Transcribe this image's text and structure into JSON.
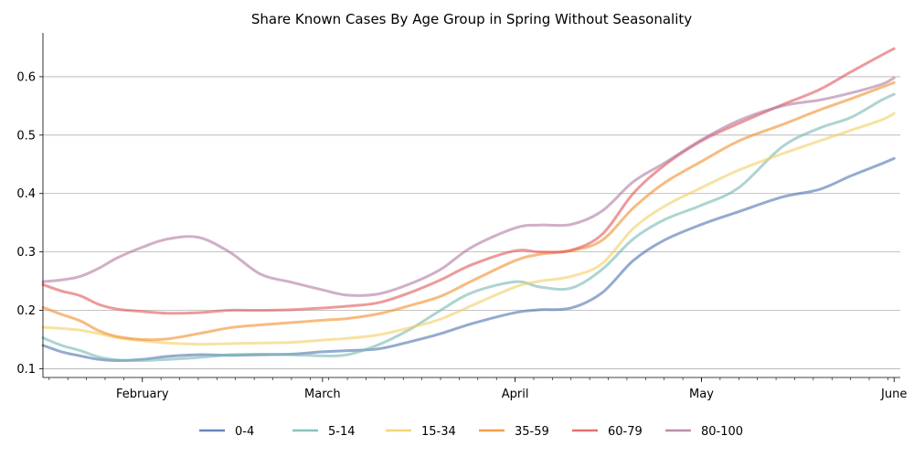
{
  "chart_data": {
    "type": "line",
    "title": "Share Known Cases By Age Group in Spring Without Seasonality",
    "xlabel": "",
    "ylabel": "",
    "x_start": "2020-01-16",
    "x_end": "2020-06-02",
    "x_ticks": [
      {
        "label": "February",
        "date": "2020-02-01"
      },
      {
        "label": "March",
        "date": "2020-03-01"
      },
      {
        "label": "April",
        "date": "2020-04-01"
      },
      {
        "label": "May",
        "date": "2020-05-01"
      },
      {
        "label": "June",
        "date": "2020-06-01"
      }
    ],
    "ylim": [
      0.085,
      0.675
    ],
    "y_ticks": [
      0.1,
      0.2,
      0.3,
      0.4,
      0.5,
      0.6
    ],
    "grid": "horizontal",
    "legend_position": "bottom",
    "series": [
      {
        "name": "0-4",
        "color": "#4c72b0",
        "x": [
          "2020-01-16",
          "2020-01-19",
          "2020-01-22",
          "2020-01-25",
          "2020-01-28",
          "2020-02-01",
          "2020-02-05",
          "2020-02-10",
          "2020-02-15",
          "2020-02-20",
          "2020-02-25",
          "2020-03-01",
          "2020-03-05",
          "2020-03-10",
          "2020-03-15",
          "2020-03-20",
          "2020-03-25",
          "2020-04-01",
          "2020-04-05",
          "2020-04-10",
          "2020-04-15",
          "2020-04-20",
          "2020-04-25",
          "2020-05-01",
          "2020-05-07",
          "2020-05-14",
          "2020-05-20",
          "2020-05-25",
          "2020-05-30",
          "2020-06-01"
        ],
        "values": [
          0.14,
          0.129,
          0.122,
          0.116,
          0.114,
          0.116,
          0.121,
          0.124,
          0.123,
          0.124,
          0.125,
          0.129,
          0.131,
          0.134,
          0.146,
          0.16,
          0.177,
          0.196,
          0.201,
          0.204,
          0.23,
          0.285,
          0.32,
          0.347,
          0.369,
          0.394,
          0.407,
          0.43,
          0.451,
          0.46
        ]
      },
      {
        "name": "5-14",
        "color": "#76b7b2",
        "x": [
          "2020-01-16",
          "2020-01-19",
          "2020-01-22",
          "2020-01-25",
          "2020-01-28",
          "2020-02-01",
          "2020-02-05",
          "2020-02-10",
          "2020-02-15",
          "2020-02-20",
          "2020-02-25",
          "2020-03-01",
          "2020-03-05",
          "2020-03-10",
          "2020-03-15",
          "2020-03-20",
          "2020-03-25",
          "2020-04-01",
          "2020-04-05",
          "2020-04-10",
          "2020-04-15",
          "2020-04-20",
          "2020-04-25",
          "2020-05-01",
          "2020-05-07",
          "2020-05-14",
          "2020-05-20",
          "2020-05-25",
          "2020-05-30",
          "2020-06-01"
        ],
        "values": [
          0.153,
          0.14,
          0.131,
          0.12,
          0.115,
          0.114,
          0.116,
          0.119,
          0.124,
          0.125,
          0.124,
          0.122,
          0.124,
          0.141,
          0.167,
          0.2,
          0.23,
          0.249,
          0.24,
          0.238,
          0.27,
          0.322,
          0.355,
          0.38,
          0.41,
          0.48,
          0.512,
          0.53,
          0.56,
          0.57
        ]
      },
      {
        "name": "15-34",
        "color": "#f1ce63",
        "x": [
          "2020-01-16",
          "2020-01-19",
          "2020-01-22",
          "2020-01-25",
          "2020-01-28",
          "2020-02-01",
          "2020-02-05",
          "2020-02-10",
          "2020-02-15",
          "2020-02-20",
          "2020-02-25",
          "2020-03-01",
          "2020-03-05",
          "2020-03-10",
          "2020-03-15",
          "2020-03-20",
          "2020-03-25",
          "2020-04-01",
          "2020-04-05",
          "2020-04-10",
          "2020-04-15",
          "2020-04-20",
          "2020-04-25",
          "2020-05-01",
          "2020-05-07",
          "2020-05-14",
          "2020-05-20",
          "2020-05-25",
          "2020-05-30",
          "2020-06-01"
        ],
        "values": [
          0.171,
          0.169,
          0.166,
          0.16,
          0.153,
          0.148,
          0.144,
          0.142,
          0.143,
          0.144,
          0.145,
          0.149,
          0.152,
          0.158,
          0.17,
          0.185,
          0.208,
          0.24,
          0.25,
          0.258,
          0.28,
          0.34,
          0.378,
          0.41,
          0.44,
          0.468,
          0.49,
          0.508,
          0.526,
          0.537
        ]
      },
      {
        "name": "35-59",
        "color": "#f28e2b",
        "x": [
          "2020-01-16",
          "2020-01-19",
          "2020-01-22",
          "2020-01-25",
          "2020-01-28",
          "2020-02-01",
          "2020-02-05",
          "2020-02-10",
          "2020-02-15",
          "2020-02-20",
          "2020-02-25",
          "2020-03-01",
          "2020-03-05",
          "2020-03-10",
          "2020-03-15",
          "2020-03-20",
          "2020-03-25",
          "2020-04-01",
          "2020-04-05",
          "2020-04-10",
          "2020-04-15",
          "2020-04-20",
          "2020-04-25",
          "2020-05-01",
          "2020-05-07",
          "2020-05-14",
          "2020-05-20",
          "2020-05-25",
          "2020-05-30",
          "2020-06-01"
        ],
        "values": [
          0.205,
          0.193,
          0.182,
          0.165,
          0.155,
          0.15,
          0.151,
          0.16,
          0.17,
          0.175,
          0.179,
          0.183,
          0.186,
          0.194,
          0.208,
          0.224,
          0.25,
          0.285,
          0.296,
          0.302,
          0.32,
          0.375,
          0.418,
          0.455,
          0.49,
          0.518,
          0.543,
          0.562,
          0.582,
          0.59
        ]
      },
      {
        "name": "60-79",
        "color": "#e15759",
        "x": [
          "2020-01-16",
          "2020-01-19",
          "2020-01-22",
          "2020-01-25",
          "2020-01-28",
          "2020-02-01",
          "2020-02-05",
          "2020-02-10",
          "2020-02-15",
          "2020-02-20",
          "2020-02-25",
          "2020-03-01",
          "2020-03-05",
          "2020-03-10",
          "2020-03-15",
          "2020-03-20",
          "2020-03-25",
          "2020-04-01",
          "2020-04-05",
          "2020-04-10",
          "2020-04-15",
          "2020-04-20",
          "2020-04-25",
          "2020-05-01",
          "2020-05-07",
          "2020-05-14",
          "2020-05-20",
          "2020-05-25",
          "2020-05-30",
          "2020-06-01"
        ],
        "values": [
          0.244,
          0.233,
          0.225,
          0.21,
          0.202,
          0.198,
          0.195,
          0.196,
          0.2,
          0.2,
          0.201,
          0.204,
          0.207,
          0.213,
          0.23,
          0.252,
          0.278,
          0.302,
          0.3,
          0.303,
          0.33,
          0.4,
          0.448,
          0.49,
          0.52,
          0.552,
          0.578,
          0.608,
          0.637,
          0.648
        ]
      },
      {
        "name": "80-100",
        "color": "#b07aa1",
        "x": [
          "2020-01-16",
          "2020-01-19",
          "2020-01-22",
          "2020-01-25",
          "2020-01-28",
          "2020-02-01",
          "2020-02-05",
          "2020-02-10",
          "2020-02-15",
          "2020-02-20",
          "2020-02-25",
          "2020-03-01",
          "2020-03-05",
          "2020-03-10",
          "2020-03-15",
          "2020-03-20",
          "2020-03-25",
          "2020-04-01",
          "2020-04-05",
          "2020-04-10",
          "2020-04-15",
          "2020-04-20",
          "2020-04-25",
          "2020-05-01",
          "2020-05-07",
          "2020-05-14",
          "2020-05-20",
          "2020-05-25",
          "2020-05-30",
          "2020-06-01"
        ],
        "values": [
          0.249,
          0.252,
          0.258,
          0.272,
          0.29,
          0.308,
          0.322,
          0.325,
          0.3,
          0.262,
          0.248,
          0.235,
          0.226,
          0.228,
          0.245,
          0.27,
          0.308,
          0.341,
          0.346,
          0.347,
          0.37,
          0.42,
          0.452,
          0.492,
          0.525,
          0.55,
          0.56,
          0.572,
          0.587,
          0.598
        ]
      }
    ]
  }
}
